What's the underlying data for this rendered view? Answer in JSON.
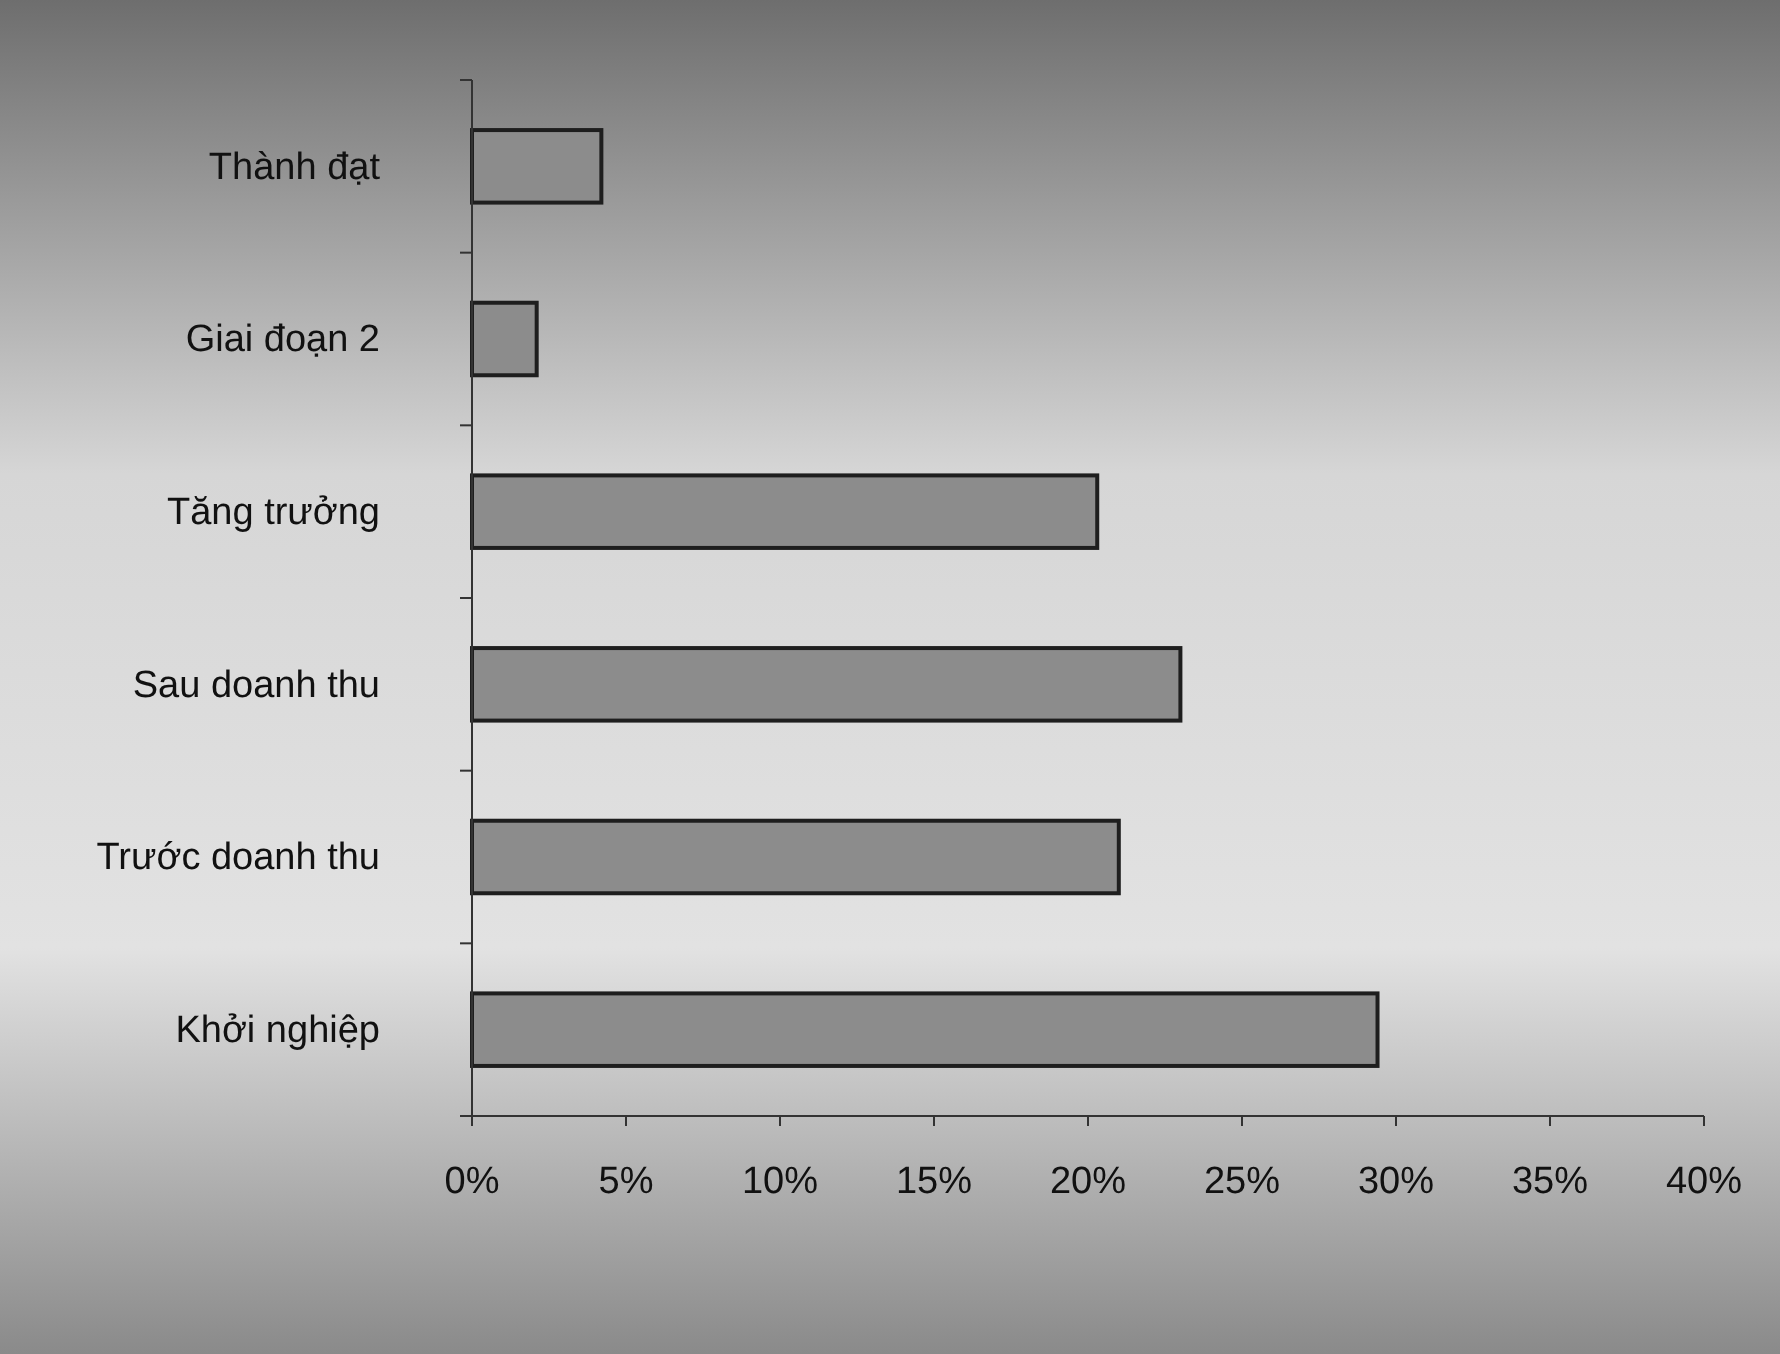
{
  "chart_data": {
    "type": "bar",
    "orientation": "horizontal",
    "categories": [
      "Thành đạt",
      "Giai đoạn 2",
      "Tăng trưởng",
      "Sau doanh thu",
      "Trước doanh thu",
      "Khởi nghiệp"
    ],
    "values": [
      4.2,
      2.1,
      20.3,
      23,
      21,
      29.4
    ],
    "color": "#8c8c8c",
    "xlim": [
      0,
      40
    ],
    "xticks": [
      {
        "value": 0,
        "label": "0%"
      },
      {
        "value": 5,
        "label": "5%"
      },
      {
        "value": 10,
        "label": "10%"
      },
      {
        "value": 15,
        "label": "15%"
      },
      {
        "value": 20,
        "label": "20%"
      },
      {
        "value": 25,
        "label": "25%"
      },
      {
        "value": 30,
        "label": "30%"
      },
      {
        "value": 35,
        "label": "35%"
      },
      {
        "value": 40,
        "label": "40%"
      }
    ],
    "grid": false
  }
}
